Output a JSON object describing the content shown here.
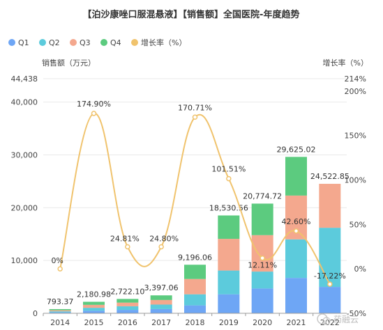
{
  "chart_data": {
    "type": "bar",
    "title": "【泊沙康唑口服混悬液】【销售额】全国医院-年度趋势",
    "categories": [
      "2014",
      "2015",
      "2016",
      "2017",
      "2018",
      "2019",
      "2020",
      "2021",
      "2022"
    ],
    "series": [
      {
        "name": "Q1",
        "color": "#6ea6f5",
        "values": [
          180,
          500,
          650,
          800,
          1500,
          3600,
          4700,
          6700,
          5000
        ]
      },
      {
        "name": "Q2",
        "color": "#5ccbdc",
        "values": [
          190,
          540,
          680,
          850,
          2100,
          4500,
          3200,
          7300,
          11200
        ]
      },
      {
        "name": "Q3",
        "color": "#f4a88e",
        "values": [
          200,
          560,
          690,
          870,
          2900,
          6000,
          6900,
          8300,
          8322.85
        ]
      },
      {
        "name": "Q4",
        "color": "#5ccb7f",
        "values": [
          223.37,
          580.98,
          702.1,
          877.06,
          2696.06,
          4430.56,
          5974.72,
          7325.02,
          0
        ]
      }
    ],
    "totals": [
      793.37,
      2180.98,
      2722.1,
      3397.06,
      9196.06,
      18530.56,
      20774.72,
      29625.02,
      24522.85
    ],
    "total_labels": [
      "793.37",
      "2,180.98",
      "2,722.10",
      "3,397.06",
      "9,196.06",
      "18,530.56",
      "20,774.72",
      "29,625.02",
      "24,522.85"
    ],
    "growth": {
      "name": "增长率（%）",
      "color": "#f0c36d",
      "values": [
        0,
        174.9,
        24.81,
        24.8,
        170.71,
        101.51,
        12.11,
        42.6,
        -17.22
      ],
      "labels": [
        "0%",
        "174.90%",
        "24.81%",
        "24.80%",
        "170.71%",
        "101.51%",
        "12.11%",
        "42.60%",
        "-17.22%"
      ]
    },
    "ylabel_left": "销售额（万元）",
    "ylabel_right": "增长率（%）",
    "ylim_left": [
      0,
      44438
    ],
    "ylim_right": [
      -50,
      214
    ],
    "left_ticks": [
      0,
      10000,
      20000,
      30000,
      40000,
      44438
    ],
    "left_tick_labels": [
      "0",
      "10,000",
      "20,000",
      "30,000",
      "40,000",
      "44,438"
    ],
    "right_ticks": [
      -50,
      0,
      50,
      100,
      150,
      200,
      214
    ],
    "right_tick_labels": [
      "-50%",
      "0%",
      "50%",
      "100%",
      "150%",
      "200%",
      "214%"
    ],
    "grid": true,
    "legend_position": "top-left"
  },
  "watermark": {
    "text": "药融云",
    "icon": "wechat-icon"
  }
}
